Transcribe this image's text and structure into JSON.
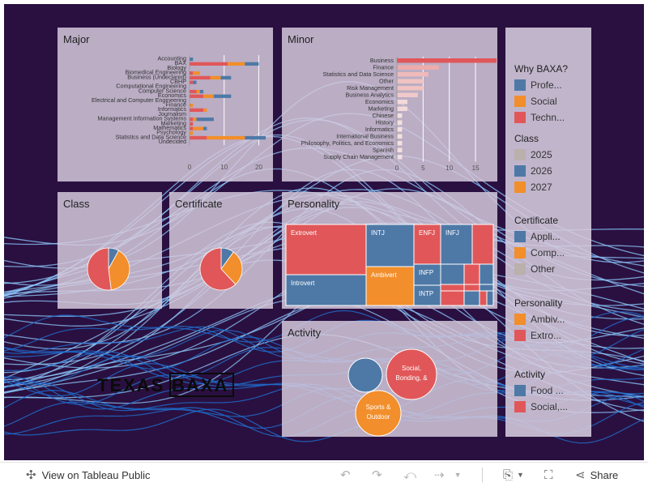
{
  "footer": {
    "view_label": "View on Tableau Public",
    "share_label": "Share"
  },
  "logo": {
    "left": "TEXAS",
    "right": "BAXA"
  },
  "colors": {
    "blue": "#4e79a7",
    "orange": "#f28e2b",
    "red": "#e15759",
    "gray": "#bab0ac",
    "background": "#2a1040",
    "wave": "#8ecbff"
  },
  "panels": {
    "major": "Major",
    "minor": "Minor",
    "class": "Class",
    "certificate": "Certificate",
    "personality": "Personality",
    "activity": "Activity"
  },
  "legend": {
    "why_title": "Why BAXA?",
    "why_items": [
      {
        "label": "Profe...",
        "color": "#4e79a7"
      },
      {
        "label": "Social",
        "color": "#f28e2b"
      },
      {
        "label": "Techn...",
        "color": "#e15759"
      }
    ],
    "class_title": "Class",
    "class_items": [
      {
        "label": "2025",
        "color": "#bab0ac"
      },
      {
        "label": "2026",
        "color": "#4e79a7"
      },
      {
        "label": "2027",
        "color": "#f28e2b"
      }
    ],
    "cert_title": "Certificate",
    "cert_items": [
      {
        "label": "Appli...",
        "color": "#4e79a7"
      },
      {
        "label": "Comp...",
        "color": "#f28e2b"
      },
      {
        "label": "Other",
        "color": "#bab0ac"
      }
    ],
    "pers_title": "Personality",
    "pers_items": [
      {
        "label": "Ambiv...",
        "color": "#f28e2b"
      },
      {
        "label": "Extro...",
        "color": "#e15759"
      }
    ],
    "act_title": "Activity",
    "act_items": [
      {
        "label": "Food ...",
        "color": "#4e79a7"
      },
      {
        "label": "Social,...",
        "color": "#e15759"
      }
    ]
  },
  "chart_data": [
    {
      "id": "major",
      "type": "bar",
      "title": "Major",
      "orientation": "horizontal",
      "stacked": true,
      "categories": [
        "Accounting",
        "BAX",
        "Biology",
        "Biomedical Engineering",
        "Business (Undeclared)",
        "CBHP",
        "Computational Engineering",
        "Computer Science",
        "Economics",
        "Electrical and Computer Engineering",
        "Finance",
        "Informatics",
        "Journalism",
        "Management Information Systems",
        "Marketing",
        "Mathematics",
        "Psychology",
        "Statistics and Data Science",
        "Undecided"
      ],
      "series": [
        {
          "name": "Techn...",
          "color": "#e15759",
          "values": [
            0,
            11,
            0,
            1,
            6,
            1,
            0,
            2,
            4,
            0,
            0,
            4,
            0,
            1,
            1,
            1,
            0,
            5,
            0
          ]
        },
        {
          "name": "Social",
          "color": "#f28e2b",
          "values": [
            0,
            5,
            0,
            2,
            3,
            0,
            0,
            1,
            3,
            0,
            1,
            1,
            0,
            1,
            0,
            3,
            1,
            11,
            0
          ]
        },
        {
          "name": "Profe...",
          "color": "#4e79a7",
          "values": [
            1,
            4,
            0,
            0,
            3,
            1,
            0,
            1,
            5,
            0,
            0,
            0,
            0,
            5,
            0,
            1,
            0,
            6,
            0
          ]
        }
      ],
      "xticks": [
        0,
        10,
        20
      ],
      "xlim": [
        0,
        22
      ]
    },
    {
      "id": "minor",
      "type": "bar",
      "title": "Minor",
      "orientation": "horizontal",
      "categories": [
        "Business",
        "Finance",
        "Statistics and Data Science",
        "Other",
        "Risk Management",
        "Business Analytics",
        "Economics",
        "Marketing",
        "Chinese",
        "History",
        "Informatics",
        "International Business",
        "Philosophy, Politics, and Economics",
        "Spanish",
        "Supply Chain Management"
      ],
      "values": [
        19,
        8,
        6,
        5,
        5,
        4,
        2,
        2,
        1,
        1,
        1,
        1,
        1,
        1,
        1
      ],
      "xticks": [
        0,
        5,
        10,
        15
      ],
      "xlim": [
        0,
        19
      ]
    },
    {
      "id": "class",
      "type": "pie",
      "title": "Class",
      "labels": [
        "2026",
        "2027",
        "2025"
      ],
      "values": [
        8,
        40,
        52
      ],
      "colors": [
        "#4e79a7",
        "#f28e2b",
        "#e15759"
      ]
    },
    {
      "id": "certificate",
      "type": "pie",
      "title": "Certificate",
      "labels": [
        "Appli...",
        "Comp...",
        "Other"
      ],
      "values": [
        10,
        28,
        62
      ],
      "colors": [
        "#4e79a7",
        "#f28e2b",
        "#e15759"
      ]
    },
    {
      "id": "personality",
      "type": "treemap",
      "title": "Personality",
      "cells": [
        {
          "label": "Extrovert",
          "color": "#e15759"
        },
        {
          "label": "Introvert",
          "color": "#4e79a7"
        },
        {
          "label": "INTJ",
          "color": "#4e79a7"
        },
        {
          "label": "Ambivert",
          "color": "#f28e2b"
        },
        {
          "label": "ENFJ",
          "color": "#e15759"
        },
        {
          "label": "INFJ",
          "color": "#4e79a7"
        },
        {
          "label": "",
          "color": "#e15759"
        },
        {
          "label": "INFP",
          "color": "#4e79a7"
        },
        {
          "label": "INTP",
          "color": "#4e79a7"
        },
        {
          "label": "",
          "color": "#4e79a7"
        },
        {
          "label": "",
          "color": "#e15759"
        },
        {
          "label": "",
          "color": "#4e79a7"
        },
        {
          "label": "",
          "color": "#e15759"
        },
        {
          "label": "",
          "color": "#e15759"
        },
        {
          "label": "",
          "color": "#4e79a7"
        },
        {
          "label": "",
          "color": "#e15759"
        },
        {
          "label": "",
          "color": "#4e79a7"
        },
        {
          "label": "",
          "color": "#e15759"
        },
        {
          "label": "",
          "color": "#4e79a7"
        }
      ]
    },
    {
      "id": "activity",
      "type": "bubble",
      "title": "Activity",
      "bubbles": [
        {
          "label": "",
          "lines": [],
          "color": "#4e79a7",
          "size": 21
        },
        {
          "label": "Social, Bonding, &",
          "lines": [
            "Social,",
            "Bonding, &"
          ],
          "color": "#e15759",
          "size": 31
        },
        {
          "label": "Sports & Outdoor",
          "lines": [
            "Sports &",
            "Outdoor"
          ],
          "color": "#f28e2b",
          "size": 28
        }
      ]
    }
  ]
}
